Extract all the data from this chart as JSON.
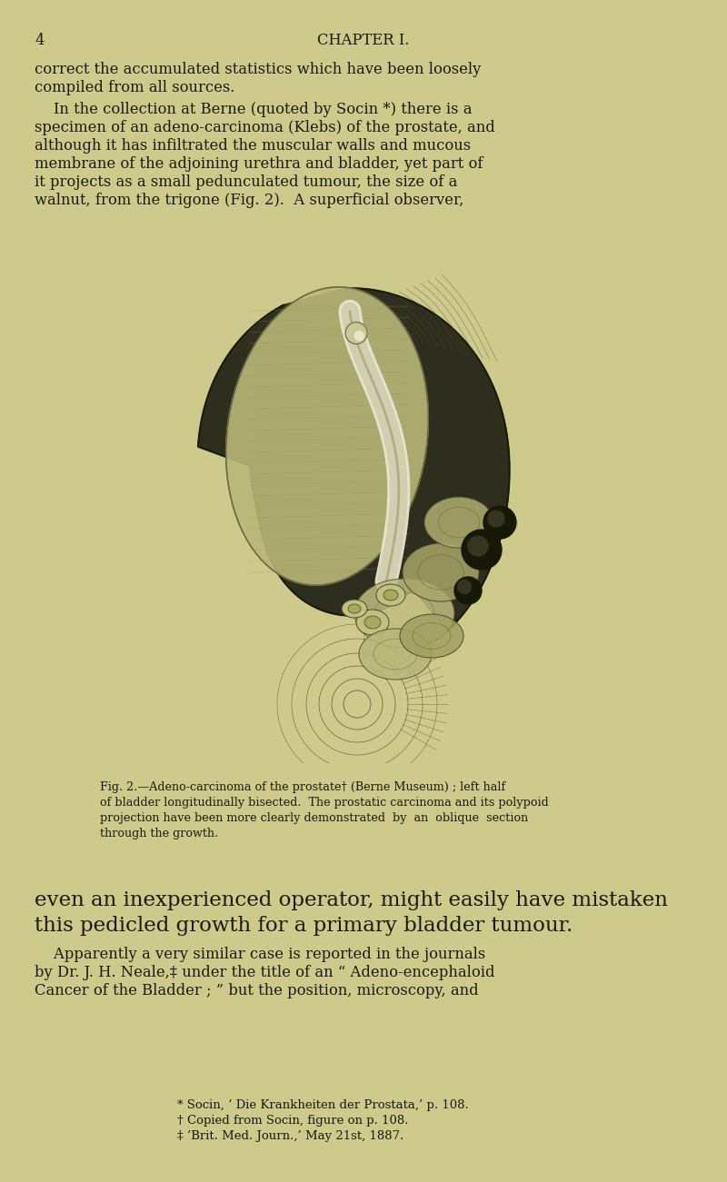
{
  "bg_color": "#ceca8b",
  "page_num": "4",
  "chapter_heading": "CHAPTER I.",
  "text_color": "#1a1a10",
  "body_font_size": 11.8,
  "small_font_size": 9.5,
  "caption_font_size": 9.2,
  "large_font_size": 16.5,
  "para1_line1": "correct the accumulated statistics which have been loosely",
  "para1_line2": "compiled from all sources.",
  "para2_lines": [
    "    In the collection at Berne (quoted by Socin *) there is a",
    "specimen of an adeno-carcinoma (Klebs) of the prostate, and",
    "although it has infiltrated the muscular walls and mucous",
    "membrane of the adjoining urethra and bladder, yet part of",
    "it projects as a small pedunculated tumour, the size of a",
    "walnut, from the trigone (Fig. 2).  A superficial observer,"
  ],
  "fig_caption_lines": [
    "Fig. 2.—Adeno-carcinoma of the prostate† (Berne Museum) ; left half",
    "of bladder longitudinally bisected.  The prostatic carcinoma and its polypoid",
    "projection have been more clearly demonstrated  by  an  oblique  section",
    "through the growth."
  ],
  "para3_lines": [
    "even an inexperienced operator, might easily have mistaken",
    "this pedicled growth for a primary bladder tumour."
  ],
  "para4_lines": [
    "    Apparently a very similar case is reported in the journals",
    "by Dr. J. H. Neale,‡ under the title of an “ Adeno-encephaloid",
    "Cancer of the Bladder ; ” but the position, microscopy, and"
  ],
  "footnote_lines": [
    "* Socin, ‘ Die Krankheiten der Prostata,’ p. 108.",
    "† Copied from Socin, figure on p. 108.",
    "‡ ‘Brit. Med. Journ.,’ May 21st, 1887."
  ]
}
